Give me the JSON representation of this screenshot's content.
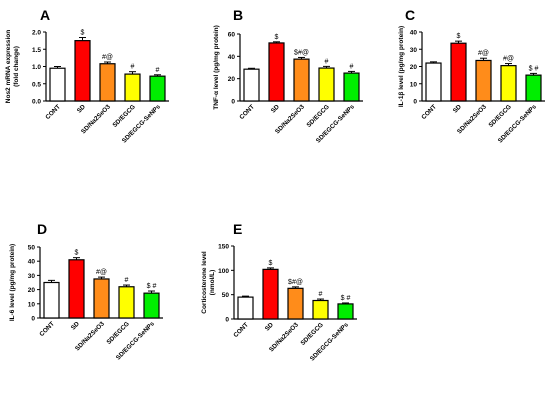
{
  "chart_data": [
    {
      "panel": "A",
      "type": "bar",
      "ylabel": "Nos2 mRNA expression",
      "ylabel2": "(fold change)",
      "ylim": [
        0,
        2.0
      ],
      "yticks": [
        "0.0",
        "0.5",
        "1.0",
        "1.5",
        "2.0"
      ],
      "ytick_values": [
        0,
        0.5,
        1.0,
        1.5,
        2.0
      ],
      "categories": [
        "CONT",
        "SD",
        "SD/Na2SeO3",
        "SD/EGCG",
        "SD/EGCG-SeNPs"
      ],
      "values": [
        0.95,
        1.75,
        1.08,
        0.78,
        0.72
      ],
      "errors": [
        0.05,
        0.09,
        0.05,
        0.07,
        0.04
      ],
      "annotations": [
        "",
        "$",
        "#@",
        "#",
        "#"
      ]
    },
    {
      "panel": "B",
      "type": "bar",
      "ylabel": "TNF-α level (pg/mg protein)",
      "ylabel2": "",
      "ylim": [
        0,
        60
      ],
      "yticks": [
        "0",
        "20",
        "40",
        "60"
      ],
      "ytick_values": [
        0,
        20,
        40,
        60
      ],
      "categories": [
        "CONT",
        "SD",
        "SD/Na2SeO3",
        "SD/EGCG",
        "SD/EGCG-SeNPs"
      ],
      "values": [
        28.5,
        52,
        37.5,
        29.5,
        25
      ],
      "errors": [
        0.8,
        1.0,
        1.5,
        1.5,
        1.5
      ],
      "annotations": [
        "",
        "$",
        "$#@",
        "#",
        "#"
      ]
    },
    {
      "panel": "C",
      "type": "bar",
      "ylabel": "IL-1β level (pg/mg protein)",
      "ylabel2": "",
      "ylim": [
        0,
        40
      ],
      "yticks": [
        "0",
        "10",
        "20",
        "30",
        "40"
      ],
      "ytick_values": [
        0,
        10,
        20,
        30,
        40
      ],
      "categories": [
        "CONT",
        "SD",
        "SD/Na2SeO3",
        "SD/EGCG",
        "SD/EGCG-SeNPs"
      ],
      "values": [
        22,
        33.5,
        23.5,
        20.5,
        15
      ],
      "errors": [
        0.7,
        1.2,
        1.3,
        1.2,
        1.0
      ],
      "annotations": [
        "",
        "$",
        "#@",
        "#@",
        "$ #"
      ]
    },
    {
      "panel": "D",
      "type": "bar",
      "ylabel": "IL-6 level (pg/mg protein)",
      "ylabel2": "",
      "ylim": [
        0,
        50
      ],
      "yticks": [
        "0",
        "10",
        "20",
        "30",
        "40",
        "50"
      ],
      "ytick_values": [
        0,
        10,
        20,
        30,
        40,
        50
      ],
      "categories": [
        "CONT",
        "SD",
        "SD/Na2SeO3",
        "SD/EGCG",
        "SD/EGCG-SeNPs"
      ],
      "values": [
        25,
        41,
        27.5,
        22,
        17.5
      ],
      "errors": [
        1.5,
        1.5,
        1.3,
        1.2,
        1.5
      ],
      "annotations": [
        "",
        "$",
        "#@",
        "#",
        "$ #"
      ]
    },
    {
      "panel": "E",
      "type": "bar",
      "ylabel": "Corticosterone level",
      "ylabel2": "(nmol/L)",
      "ylim": [
        0,
        150
      ],
      "yticks": [
        "0",
        "50",
        "100",
        "150"
      ],
      "ytick_values": [
        0,
        50,
        100,
        150
      ],
      "categories": [
        "CONT",
        "SD",
        "SD/Na2SeO3",
        "SD/EGCG",
        "SD/EGCG-SeNPs"
      ],
      "values": [
        45,
        102,
        63,
        38,
        31
      ],
      "errors": [
        2,
        3,
        3,
        3,
        2
      ],
      "annotations": [
        "",
        "$",
        "$#@",
        "#",
        "$ #"
      ]
    }
  ],
  "colors": {
    "bars": [
      "#ffffff",
      "#ff0000",
      "#ff8c1a",
      "#ffff00",
      "#00ee00"
    ],
    "stroke": "#000000"
  }
}
